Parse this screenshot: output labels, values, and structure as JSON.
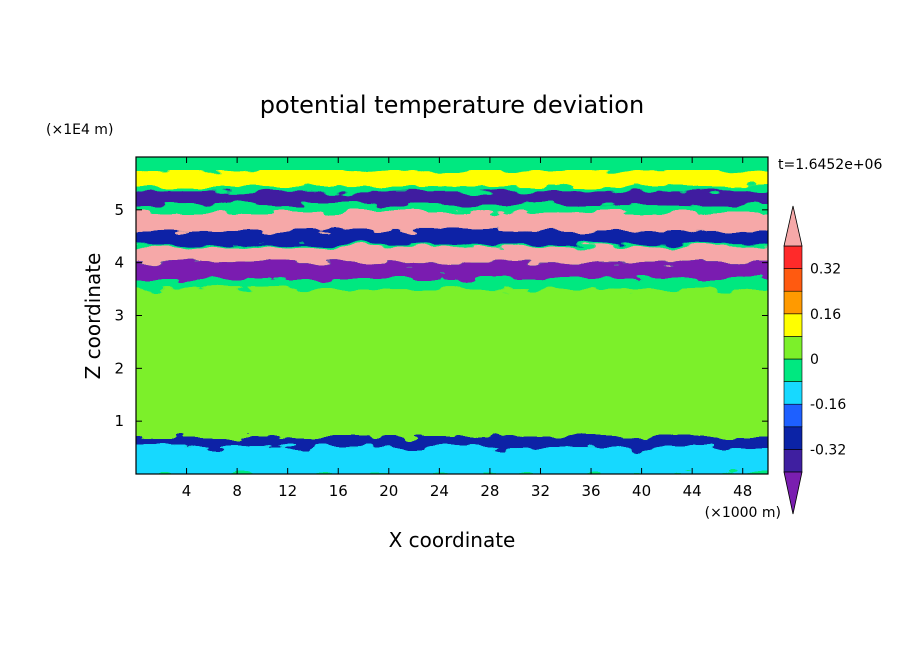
{
  "chart_data": {
    "type": "heatmap",
    "title": "potential temperature deviation",
    "xlabel": "X coordinate",
    "ylabel": "Z coordinate",
    "x_units": "(×1000 m)",
    "y_units": "(×1E4 m)",
    "time_label": "t=1.6452e+06",
    "xlim": [
      0,
      50
    ],
    "ylim": [
      0,
      6
    ],
    "x_ticks": [
      4,
      8,
      12,
      16,
      20,
      24,
      28,
      32,
      36,
      40,
      44,
      48
    ],
    "y_ticks": [
      1,
      2,
      3,
      4,
      5
    ],
    "grid": false,
    "colorbar": {
      "position": "right",
      "levels": [
        -0.4,
        -0.32,
        -0.24,
        -0.16,
        -0.08,
        0,
        0.08,
        0.16,
        0.24,
        0.32,
        0.4
      ],
      "tick_labels": [
        "0.32",
        "0.16",
        "0",
        "-0.16",
        "-0.32"
      ],
      "tick_values": [
        0.32,
        0.16,
        0,
        -0.16,
        -0.32
      ],
      "colors_bottom_to_top": [
        "#7a1eb0",
        "#3f1fa0",
        "#0b23a6",
        "#1e60ff",
        "#17d9ff",
        "#00e880",
        "#7cf02a",
        "#ffff00",
        "#ff9a00",
        "#ff5a10",
        "#ff2a2a",
        "#f6a8a8"
      ],
      "extend": "both"
    },
    "layers": [
      {
        "z_range": [
          5.45,
          5.75
        ],
        "value": 0.12
      },
      {
        "z_range": [
          5.1,
          5.35
        ],
        "value": -0.36
      },
      {
        "z_range": [
          4.6,
          4.95
        ],
        "value": 0.45
      },
      {
        "z_range": [
          4.35,
          4.6
        ],
        "value": -0.3
      },
      {
        "z_range": [
          4.0,
          4.3
        ],
        "value": 0.45
      },
      {
        "z_range": [
          3.7,
          4.0
        ],
        "value": -0.42
      },
      {
        "z_range": [
          0.7,
          3.5
        ],
        "value": 0.02
      },
      {
        "z_range": [
          0.5,
          0.7
        ],
        "value": -0.3
      },
      {
        "z_range": [
          0.0,
          0.5
        ],
        "value": -0.12
      }
    ]
  }
}
